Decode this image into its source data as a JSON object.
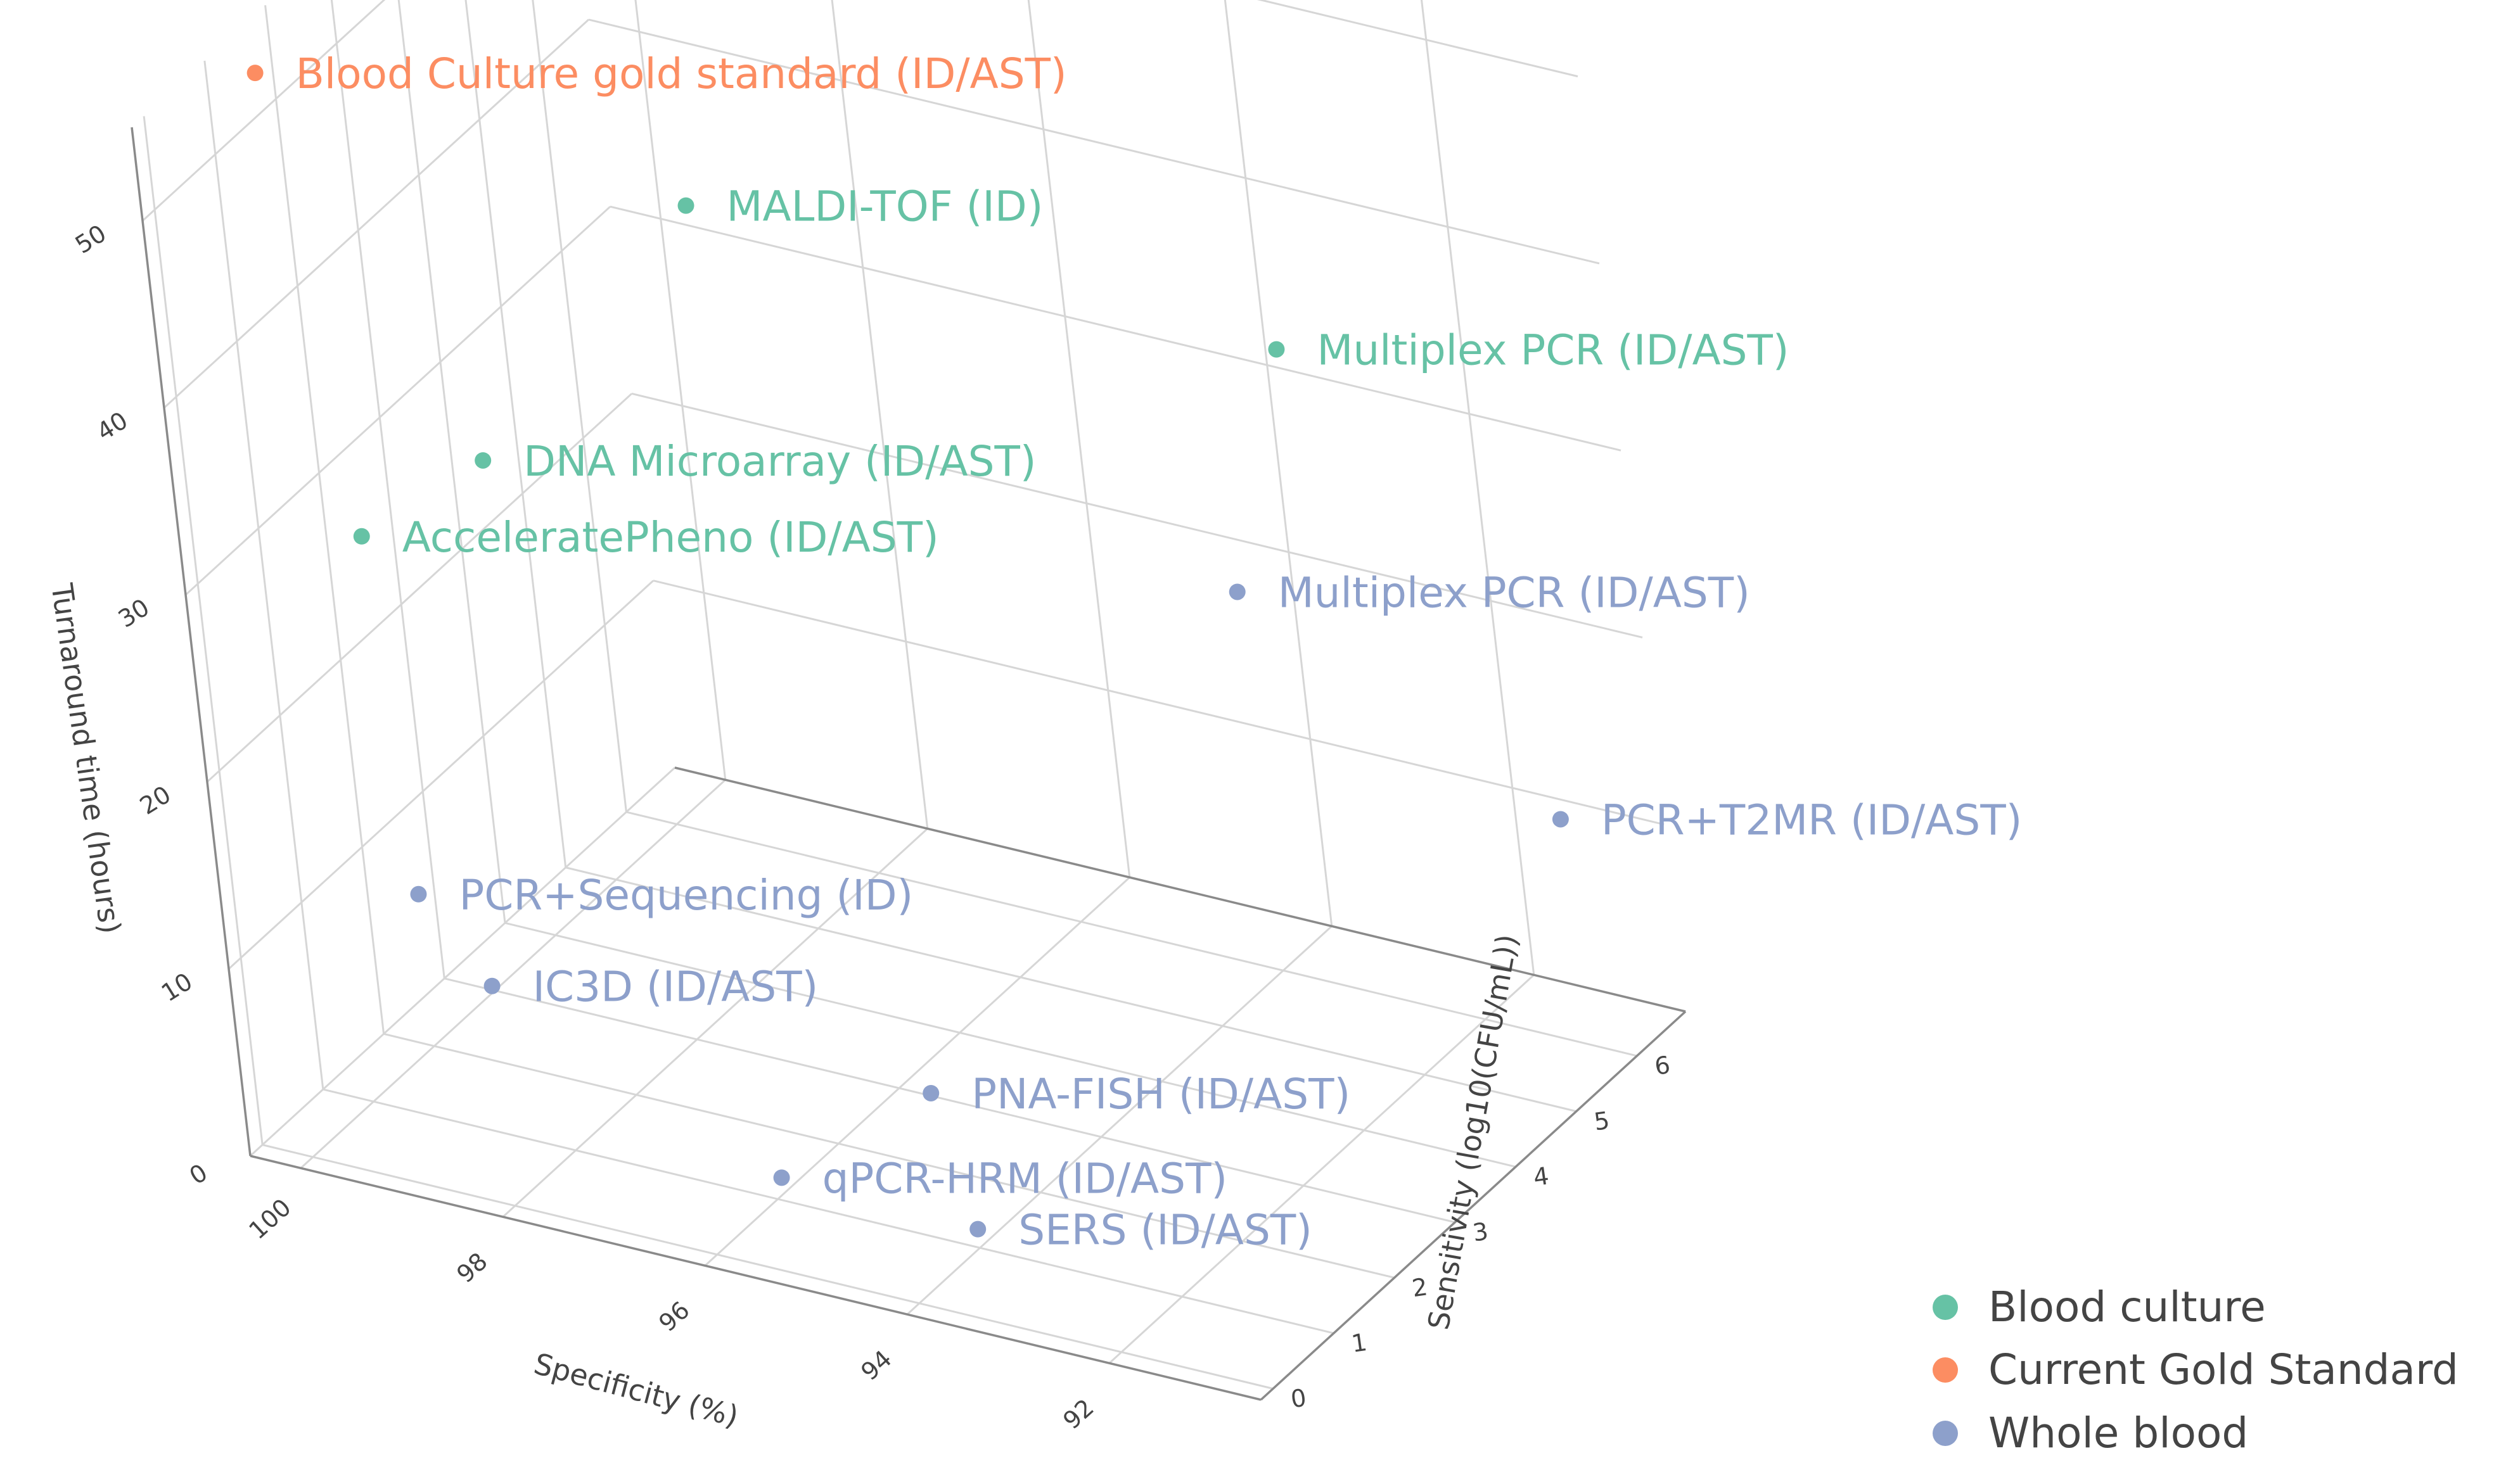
{
  "chart_data": {
    "type": "scatter3d",
    "title": "",
    "colors": {
      "Blood culture": "#66c2a5",
      "Current Gold Standard": "#fc8d62",
      "Whole blood": "#8da0cb",
      "grid": "#d6d6d6",
      "axis": "#8a8a8a",
      "text": "#444444"
    },
    "axes": {
      "x": {
        "label": "Specificity (%)",
        "range": [
          90.5,
          100.5
        ],
        "ticks": [
          100,
          98,
          96,
          94,
          92
        ],
        "tick_labels": [
          "100",
          "98",
          "96",
          "94",
          "92"
        ]
      },
      "y": {
        "label": "Sensitivity (log10(CFU/mL))",
        "range": [
          -0.2,
          6.8
        ],
        "ticks": [
          0,
          1,
          2,
          3,
          4,
          5,
          6
        ],
        "tick_labels": [
          "0",
          "1",
          "2",
          "3",
          "4",
          "5",
          "6"
        ]
      },
      "z": {
        "label": "Turnaround time (hours)",
        "range": [
          0,
          55
        ],
        "ticks": [
          0,
          10,
          20,
          30,
          40,
          50
        ],
        "tick_labels": [
          "0",
          "10",
          "20",
          "30",
          "40",
          "50"
        ]
      }
    },
    "series": [
      {
        "name": "Blood culture",
        "points": [
          {
            "label": "MALDI-TOF (ID)",
            "specificity": 98.5,
            "sensitivity": 5.0,
            "turnaround": 38
          },
          {
            "label": "Multiplex PCR (ID/AST)",
            "specificity": 93.0,
            "sensitivity": 5.5,
            "turnaround": 36
          },
          {
            "label": "AcceleratePheno (ID/AST)",
            "specificity": 99.8,
            "sensitivity": 1.5,
            "turnaround": 29
          },
          {
            "label": "DNA Microarray (ID/AST)",
            "specificity": 99.5,
            "sensitivity": 3.0,
            "turnaround": 29
          }
        ]
      },
      {
        "name": "Current Gold Standard",
        "points": [
          {
            "label": "Blood Culture gold standard (ID/AST)",
            "specificity": 100,
            "sensitivity": 1.0,
            "turnaround": 55
          }
        ]
      },
      {
        "name": "Whole blood",
        "points": [
          {
            "label": "Multiplex PCR (ID/AST)",
            "specificity": 93.0,
            "sensitivity": 4.5,
            "turnaround": 26
          },
          {
            "label": "PCR+T2MR (ID/AST)",
            "specificity": 91.0,
            "sensitivity": 6.0,
            "turnaround": 12
          },
          {
            "label": "PCR+Sequencing (ID)",
            "specificity": 99.3,
            "sensitivity": 1.0,
            "turnaround": 12
          },
          {
            "label": "IC3D (ID/AST)",
            "specificity": 99.0,
            "sensitivity": 1.5,
            "turnaround": 6
          },
          {
            "label": "PNA-FISH (ID/AST)",
            "specificity": 95.0,
            "sensitivity": 2.0,
            "turnaround": 4
          },
          {
            "label": "qPCR-HRM (ID/AST)",
            "specificity": 95.8,
            "sensitivity": 0.8,
            "turnaround": 2
          },
          {
            "label": "SERS (ID/AST)",
            "specificity": 94.0,
            "sensitivity": 1.0,
            "turnaround": 1
          }
        ]
      }
    ],
    "legend": {
      "position": "bottom-right",
      "items": [
        "Blood culture",
        "Current Gold Standard",
        "Whole blood"
      ]
    }
  }
}
